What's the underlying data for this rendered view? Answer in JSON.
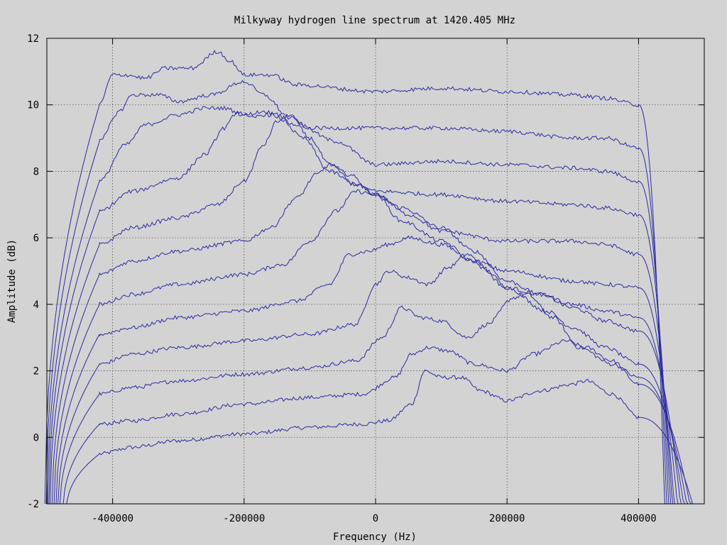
{
  "chart_data": {
    "type": "line",
    "title": "Milkyway hydrogen line spectrum at 1420.405 MHz",
    "xlabel": "Frequency (Hz)",
    "ylabel": "Amplitude (dB)",
    "xlim": [
      -500000,
      500000
    ],
    "ylim": [
      -2,
      12
    ],
    "xticks": [
      -400000,
      -200000,
      0,
      200000,
      400000
    ],
    "yticks": [
      -2,
      0,
      2,
      4,
      6,
      8,
      10,
      12
    ],
    "grid": true,
    "line_color": "#2b2ba0",
    "series": [
      {
        "edges": [
          -470000,
          485000
        ],
        "points": [
          [
            -420000,
            -0.5
          ],
          [
            -370000,
            -0.3
          ],
          [
            -300000,
            -0.1
          ],
          [
            -200000,
            0.1
          ],
          [
            -100000,
            0.3
          ],
          [
            -20000,
            0.4
          ],
          [
            20000,
            0.5
          ],
          [
            55000,
            1.0
          ],
          [
            75000,
            2.0
          ],
          [
            100000,
            1.8
          ],
          [
            130000,
            1.8
          ],
          [
            160000,
            1.4
          ],
          [
            200000,
            1.1
          ],
          [
            250000,
            1.4
          ],
          [
            300000,
            1.6
          ],
          [
            320000,
            1.7
          ],
          [
            360000,
            1.3
          ],
          [
            400000,
            0.6
          ]
        ]
      },
      {
        "edges": [
          -475000,
          480000
        ],
        "points": [
          [
            -420000,
            0.4
          ],
          [
            -370000,
            0.5
          ],
          [
            -300000,
            0.7
          ],
          [
            -200000,
            1.0
          ],
          [
            -100000,
            1.2
          ],
          [
            -20000,
            1.3
          ],
          [
            30000,
            1.8
          ],
          [
            55000,
            2.5
          ],
          [
            80000,
            2.7
          ],
          [
            110000,
            2.6
          ],
          [
            150000,
            2.2
          ],
          [
            200000,
            2.0
          ],
          [
            240000,
            2.5
          ],
          [
            290000,
            2.9
          ],
          [
            320000,
            2.7
          ],
          [
            360000,
            2.3
          ],
          [
            400000,
            1.6
          ]
        ]
      },
      {
        "edges": [
          -480000,
          475000
        ],
        "points": [
          [
            -420000,
            1.3
          ],
          [
            -370000,
            1.5
          ],
          [
            -300000,
            1.7
          ],
          [
            -200000,
            1.9
          ],
          [
            -100000,
            2.1
          ],
          [
            -30000,
            2.3
          ],
          [
            10000,
            3.0
          ],
          [
            40000,
            3.9
          ],
          [
            70000,
            3.6
          ],
          [
            100000,
            3.5
          ],
          [
            140000,
            3.0
          ],
          [
            170000,
            3.4
          ],
          [
            210000,
            4.2
          ],
          [
            230000,
            4.3
          ],
          [
            270000,
            3.6
          ],
          [
            310000,
            2.7
          ],
          [
            360000,
            2.2
          ],
          [
            400000,
            1.8
          ]
        ]
      },
      {
        "edges": [
          -483000,
          470000
        ],
        "points": [
          [
            -420000,
            2.2
          ],
          [
            -370000,
            2.5
          ],
          [
            -300000,
            2.7
          ],
          [
            -200000,
            2.9
          ],
          [
            -100000,
            3.1
          ],
          [
            -30000,
            3.4
          ],
          [
            0,
            4.6
          ],
          [
            20000,
            5.0
          ],
          [
            50000,
            4.8
          ],
          [
            80000,
            4.6
          ],
          [
            110000,
            5.1
          ],
          [
            140000,
            5.5
          ],
          [
            170000,
            5.0
          ],
          [
            200000,
            4.5
          ],
          [
            260000,
            3.8
          ],
          [
            300000,
            3.3
          ],
          [
            350000,
            2.7
          ],
          [
            400000,
            2.2
          ]
        ]
      },
      {
        "edges": [
          -486000,
          465000
        ],
        "points": [
          [
            -420000,
            3.1
          ],
          [
            -370000,
            3.3
          ],
          [
            -300000,
            3.6
          ],
          [
            -200000,
            3.8
          ],
          [
            -120000,
            4.1
          ],
          [
            -70000,
            4.6
          ],
          [
            -40000,
            5.5
          ],
          [
            -10000,
            5.6
          ],
          [
            20000,
            5.8
          ],
          [
            50000,
            6.0
          ],
          [
            100000,
            5.8
          ],
          [
            150000,
            5.3
          ],
          [
            200000,
            4.5
          ],
          [
            250000,
            4.3
          ],
          [
            300000,
            3.9
          ],
          [
            350000,
            3.5
          ],
          [
            400000,
            3.2
          ]
        ]
      },
      {
        "edges": [
          -489000,
          460000
        ],
        "points": [
          [
            -420000,
            4.0
          ],
          [
            -370000,
            4.3
          ],
          [
            -300000,
            4.6
          ],
          [
            -200000,
            4.9
          ],
          [
            -140000,
            5.2
          ],
          [
            -100000,
            5.9
          ],
          [
            -60000,
            6.8
          ],
          [
            -30000,
            7.4
          ],
          [
            0,
            7.3
          ],
          [
            40000,
            6.9
          ],
          [
            100000,
            6.3
          ],
          [
            150000,
            5.6
          ],
          [
            200000,
            4.7
          ],
          [
            250000,
            4.3
          ],
          [
            300000,
            4.0
          ],
          [
            350000,
            3.8
          ],
          [
            400000,
            3.6
          ]
        ]
      },
      {
        "edges": [
          -492000,
          455000
        ],
        "points": [
          [
            -420000,
            4.9
          ],
          [
            -370000,
            5.3
          ],
          [
            -300000,
            5.6
          ],
          [
            -200000,
            5.9
          ],
          [
            -160000,
            6.3
          ],
          [
            -120000,
            7.2
          ],
          [
            -90000,
            7.9
          ],
          [
            -70000,
            8.2
          ],
          [
            -40000,
            7.9
          ],
          [
            0,
            7.3
          ],
          [
            40000,
            6.5
          ],
          [
            100000,
            5.9
          ],
          [
            150000,
            5.3
          ],
          [
            200000,
            5.0
          ],
          [
            300000,
            4.7
          ],
          [
            350000,
            4.6
          ],
          [
            400000,
            4.5
          ]
        ]
      },
      {
        "edges": [
          -495000,
          452000
        ],
        "points": [
          [
            -420000,
            5.8
          ],
          [
            -370000,
            6.3
          ],
          [
            -300000,
            6.6
          ],
          [
            -240000,
            7.0
          ],
          [
            -200000,
            7.7
          ],
          [
            -170000,
            8.8
          ],
          [
            -150000,
            9.5
          ],
          [
            -130000,
            9.7
          ],
          [
            -100000,
            9.0
          ],
          [
            -70000,
            8.2
          ],
          [
            -30000,
            7.6
          ],
          [
            0,
            7.3
          ],
          [
            50000,
            6.7
          ],
          [
            100000,
            6.2
          ],
          [
            200000,
            5.9
          ],
          [
            300000,
            5.9
          ],
          [
            350000,
            5.8
          ],
          [
            400000,
            5.5
          ]
        ]
      },
      {
        "edges": [
          -497000,
          449000
        ],
        "points": [
          [
            -420000,
            6.8
          ],
          [
            -370000,
            7.4
          ],
          [
            -300000,
            7.8
          ],
          [
            -260000,
            8.5
          ],
          [
            -230000,
            9.3
          ],
          [
            -210000,
            9.8
          ],
          [
            -190000,
            9.6
          ],
          [
            -170000,
            9.7
          ],
          [
            -150000,
            9.7
          ],
          [
            -110000,
            9.0
          ],
          [
            -70000,
            8.0
          ],
          [
            -30000,
            7.6
          ],
          [
            0,
            7.4
          ],
          [
            100000,
            7.3
          ],
          [
            200000,
            7.1
          ],
          [
            300000,
            7.0
          ],
          [
            350000,
            6.9
          ],
          [
            400000,
            6.7
          ]
        ]
      },
      {
        "edges": [
          -499000,
          446000
        ],
        "points": [
          [
            -420000,
            7.7
          ],
          [
            -380000,
            8.8
          ],
          [
            -350000,
            9.4
          ],
          [
            -300000,
            9.7
          ],
          [
            -260000,
            9.9
          ],
          [
            -230000,
            9.9
          ],
          [
            -200000,
            9.7
          ],
          [
            -170000,
            9.8
          ],
          [
            -120000,
            9.4
          ],
          [
            -60000,
            8.9
          ],
          [
            0,
            8.2
          ],
          [
            100000,
            8.3
          ],
          [
            200000,
            8.2
          ],
          [
            300000,
            8.1
          ],
          [
            350000,
            8.0
          ],
          [
            400000,
            7.7
          ]
        ]
      },
      {
        "edges": [
          -501000,
          443000
        ],
        "points": [
          [
            -420000,
            8.9
          ],
          [
            -390000,
            9.8
          ],
          [
            -370000,
            10.3
          ],
          [
            -330000,
            10.3
          ],
          [
            -300000,
            10.1
          ],
          [
            -250000,
            10.3
          ],
          [
            -200000,
            10.7
          ],
          [
            -170000,
            10.3
          ],
          [
            -130000,
            9.6
          ],
          [
            -100000,
            9.3
          ],
          [
            0,
            9.3
          ],
          [
            100000,
            9.3
          ],
          [
            200000,
            9.2
          ],
          [
            300000,
            9.0
          ],
          [
            350000,
            9.0
          ],
          [
            400000,
            8.7
          ]
        ]
      },
      {
        "edges": [
          -503000,
          440000
        ],
        "points": [
          [
            -420000,
            10.0
          ],
          [
            -400000,
            10.9
          ],
          [
            -380000,
            10.9
          ],
          [
            -350000,
            10.8
          ],
          [
            -320000,
            11.1
          ],
          [
            -280000,
            11.1
          ],
          [
            -240000,
            11.6
          ],
          [
            -220000,
            11.3
          ],
          [
            -200000,
            10.9
          ],
          [
            -160000,
            10.9
          ],
          [
            -120000,
            10.6
          ],
          [
            0,
            10.4
          ],
          [
            100000,
            10.5
          ],
          [
            200000,
            10.4
          ],
          [
            300000,
            10.3
          ],
          [
            350000,
            10.2
          ],
          [
            400000,
            10.0
          ]
        ]
      }
    ]
  }
}
